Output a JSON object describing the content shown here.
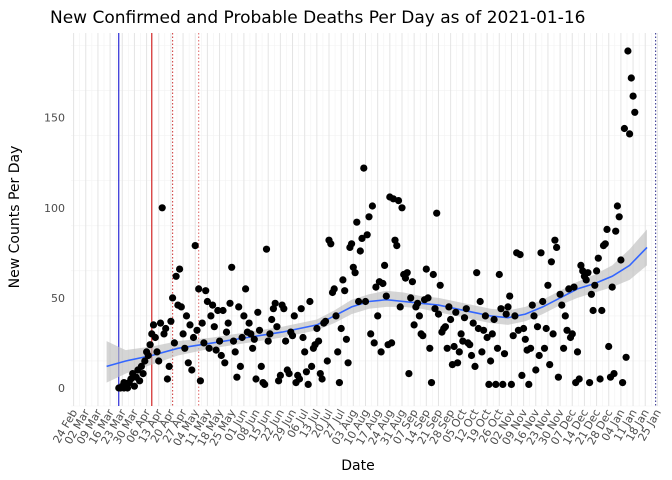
{
  "chart_data": {
    "type": "scatter",
    "title": "New Confirmed and Probable Deaths Per Day as of 2021-01-16",
    "xlabel": "Date",
    "ylabel": "New Counts Per Day",
    "x_domain_days": [
      -1.5,
      337.5
    ],
    "ylim": [
      -10,
      197
    ],
    "y_ticks": [
      0,
      50,
      100,
      150
    ],
    "x_tick_labels": [
      "24 Feb",
      "02 Mar",
      "09 Mar",
      "16 Mar",
      "23 Mar",
      "30 Mar",
      "06 Apr",
      "13 Apr",
      "20 Apr",
      "27 Apr",
      "04 May",
      "11 May",
      "18 May",
      "25 May",
      "01 Jun",
      "08 Jun",
      "15 Jun",
      "22 Jun",
      "29 Jun",
      "06 Jul",
      "13 Jul",
      "20 Jul",
      "27 Jul",
      "03 Aug",
      "10 Aug",
      "17 Aug",
      "24 Aug",
      "31 Aug",
      "07 Sep",
      "14 Sep",
      "21 Sep",
      "28 Sep",
      "05 Oct",
      "12 Oct",
      "19 Oct",
      "26 Oct",
      "02 Nov",
      "09 Nov",
      "16 Nov",
      "23 Nov",
      "30 Nov",
      "07 Dec",
      "14 Dec",
      "21 Dec",
      "28 Dec",
      "04 Jan",
      "11 Jan",
      "18 Jan",
      "25 Jan"
    ],
    "x_tick_offset_days": 7,
    "vertical_lines": [
      {
        "day": 26,
        "color": "#0000cd",
        "style": "solid"
      },
      {
        "day": 45,
        "color": "#cc0000",
        "style": "solid"
      },
      {
        "day": 57,
        "color": "#cc3333",
        "style": "dotted"
      },
      {
        "day": 72,
        "color": "#e06666",
        "style": "dotted"
      },
      {
        "day": 335,
        "color": "#2a2a8a",
        "style": "dotted"
      }
    ],
    "smooth": {
      "color": "#3366ff",
      "band_color": "#bfbfbf",
      "x": [
        19,
        30,
        45,
        60,
        80,
        100,
        120,
        140,
        150,
        160,
        170,
        180,
        190,
        200,
        210,
        220,
        230,
        240,
        250,
        260,
        270,
        280,
        290,
        300,
        310,
        320,
        330
      ],
      "y": [
        12,
        15,
        18,
        22,
        25,
        28,
        31,
        35,
        40,
        45,
        48,
        49,
        48,
        47,
        46,
        44,
        42,
        40,
        39,
        41,
        45,
        50,
        55,
        58,
        62,
        68,
        78
      ],
      "lower": [
        3,
        8,
        13,
        18,
        22,
        25,
        28,
        32,
        36,
        41,
        44,
        45,
        45,
        44,
        42,
        40,
        38,
        36,
        35,
        37,
        41,
        46,
        50,
        53,
        56,
        60,
        68
      ],
      "upper": [
        26,
        21,
        23,
        26,
        28,
        31,
        34,
        38,
        43,
        49,
        52,
        54,
        53,
        51,
        50,
        48,
        46,
        44,
        43,
        45,
        49,
        54,
        59,
        63,
        68,
        77,
        88
      ]
    },
    "points": [
      [
        26,
        0
      ],
      [
        27,
        0
      ],
      [
        28,
        1
      ],
      [
        29,
        0
      ],
      [
        29,
        3
      ],
      [
        30,
        1
      ],
      [
        31,
        0
      ],
      [
        31,
        2
      ],
      [
        32,
        3
      ],
      [
        33,
        5
      ],
      [
        34,
        8
      ],
      [
        35,
        1
      ],
      [
        36,
        6
      ],
      [
        37,
        10
      ],
      [
        38,
        4
      ],
      [
        39,
        12
      ],
      [
        40,
        8
      ],
      [
        41,
        15
      ],
      [
        42,
        20
      ],
      [
        43,
        18
      ],
      [
        44,
        24
      ],
      [
        45,
        30
      ],
      [
        46,
        35
      ],
      [
        47,
        28
      ],
      [
        48,
        20
      ],
      [
        49,
        15
      ],
      [
        50,
        36
      ],
      [
        51,
        100
      ],
      [
        52,
        30
      ],
      [
        53,
        33
      ],
      [
        54,
        5
      ],
      [
        55,
        12
      ],
      [
        56,
        37
      ],
      [
        57,
        50
      ],
      [
        58,
        25
      ],
      [
        59,
        62
      ],
      [
        60,
        46
      ],
      [
        61,
        66
      ],
      [
        62,
        45
      ],
      [
        63,
        30
      ],
      [
        64,
        22
      ],
      [
        65,
        40
      ],
      [
        66,
        14
      ],
      [
        67,
        35
      ],
      [
        68,
        10
      ],
      [
        69,
        28
      ],
      [
        70,
        79
      ],
      [
        71,
        32
      ],
      [
        72,
        55
      ],
      [
        73,
        4
      ],
      [
        74,
        36
      ],
      [
        75,
        25
      ],
      [
        76,
        54
      ],
      [
        77,
        48
      ],
      [
        78,
        22
      ],
      [
        79,
        40
      ],
      [
        80,
        46
      ],
      [
        81,
        34
      ],
      [
        82,
        21
      ],
      [
        83,
        43
      ],
      [
        84,
        26
      ],
      [
        85,
        18
      ],
      [
        86,
        43
      ],
      [
        87,
        14
      ],
      [
        88,
        31
      ],
      [
        89,
        36
      ],
      [
        90,
        47
      ],
      [
        91,
        67
      ],
      [
        92,
        26
      ],
      [
        93,
        20
      ],
      [
        94,
        6
      ],
      [
        95,
        45
      ],
      [
        96,
        12
      ],
      [
        97,
        28
      ],
      [
        98,
        40
      ],
      [
        99,
        55
      ],
      [
        100,
        31
      ],
      [
        101,
        36
      ],
      [
        102,
        30
      ],
      [
        103,
        22
      ],
      [
        104,
        27
      ],
      [
        105,
        5
      ],
      [
        106,
        42
      ],
      [
        107,
        32
      ],
      [
        108,
        12
      ],
      [
        109,
        3
      ],
      [
        110,
        2
      ],
      [
        111,
        77
      ],
      [
        112,
        26
      ],
      [
        113,
        30
      ],
      [
        114,
        38
      ],
      [
        115,
        44
      ],
      [
        116,
        47
      ],
      [
        117,
        34
      ],
      [
        118,
        4
      ],
      [
        119,
        7
      ],
      [
        120,
        46
      ],
      [
        121,
        44
      ],
      [
        122,
        26
      ],
      [
        123,
        10
      ],
      [
        124,
        8
      ],
      [
        125,
        31
      ],
      [
        126,
        29
      ],
      [
        127,
        40
      ],
      [
        128,
        3
      ],
      [
        129,
        7
      ],
      [
        130,
        5
      ],
      [
        131,
        44
      ],
      [
        132,
        28
      ],
      [
        133,
        20
      ],
      [
        134,
        9
      ],
      [
        135,
        2
      ],
      [
        136,
        48
      ],
      [
        137,
        12
      ],
      [
        138,
        22
      ],
      [
        139,
        24
      ],
      [
        140,
        33
      ],
      [
        141,
        26
      ],
      [
        142,
        8
      ],
      [
        143,
        5
      ],
      [
        144,
        36
      ],
      [
        145,
        37
      ],
      [
        146,
        15
      ],
      [
        147,
        82
      ],
      [
        148,
        80
      ],
      [
        149,
        53
      ],
      [
        150,
        55
      ],
      [
        151,
        40
      ],
      [
        152,
        20
      ],
      [
        153,
        3
      ],
      [
        154,
        33
      ],
      [
        155,
        60
      ],
      [
        156,
        54
      ],
      [
        157,
        27
      ],
      [
        158,
        14
      ],
      [
        159,
        78
      ],
      [
        160,
        80
      ],
      [
        161,
        67
      ],
      [
        162,
        64
      ],
      [
        163,
        92
      ],
      [
        164,
        48
      ],
      [
        165,
        76
      ],
      [
        166,
        83
      ],
      [
        167,
        122
      ],
      [
        168,
        48
      ],
      [
        169,
        85
      ],
      [
        170,
        95
      ],
      [
        171,
        30
      ],
      [
        172,
        101
      ],
      [
        173,
        25
      ],
      [
        174,
        56
      ],
      [
        175,
        40
      ],
      [
        176,
        59
      ],
      [
        177,
        20
      ],
      [
        178,
        58
      ],
      [
        179,
        68
      ],
      [
        180,
        51
      ],
      [
        181,
        24
      ],
      [
        182,
        106
      ],
      [
        183,
        25
      ],
      [
        184,
        105
      ],
      [
        185,
        82
      ],
      [
        186,
        79
      ],
      [
        187,
        104
      ],
      [
        188,
        45
      ],
      [
        189,
        100
      ],
      [
        190,
        63
      ],
      [
        191,
        61
      ],
      [
        192,
        64
      ],
      [
        193,
        8
      ],
      [
        194,
        50
      ],
      [
        195,
        59
      ],
      [
        196,
        35
      ],
      [
        197,
        45
      ],
      [
        198,
        47
      ],
      [
        199,
        40
      ],
      [
        200,
        30
      ],
      [
        201,
        29
      ],
      [
        202,
        49
      ],
      [
        203,
        66
      ],
      [
        204,
        50
      ],
      [
        205,
        22
      ],
      [
        206,
        3
      ],
      [
        207,
        63
      ],
      [
        208,
        44
      ],
      [
        209,
        97
      ],
      [
        210,
        41
      ],
      [
        211,
        57
      ],
      [
        212,
        31
      ],
      [
        213,
        33
      ],
      [
        214,
        34
      ],
      [
        215,
        22
      ],
      [
        216,
        45
      ],
      [
        217,
        38
      ],
      [
        218,
        13
      ],
      [
        219,
        23
      ],
      [
        220,
        42
      ],
      [
        221,
        14
      ],
      [
        222,
        20
      ],
      [
        223,
        30
      ],
      [
        224,
        26
      ],
      [
        225,
        39
      ],
      [
        226,
        44
      ],
      [
        227,
        25
      ],
      [
        228,
        24
      ],
      [
        229,
        18
      ],
      [
        230,
        36
      ],
      [
        231,
        12
      ],
      [
        232,
        64
      ],
      [
        233,
        33
      ],
      [
        234,
        48
      ],
      [
        235,
        20
      ],
      [
        236,
        32
      ],
      [
        237,
        40
      ],
      [
        238,
        28
      ],
      [
        239,
        2
      ],
      [
        240,
        15
      ],
      [
        241,
        30
      ],
      [
        242,
        38
      ],
      [
        243,
        2
      ],
      [
        244,
        22
      ],
      [
        245,
        63
      ],
      [
        246,
        44
      ],
      [
        247,
        2
      ],
      [
        248,
        19
      ],
      [
        249,
        41
      ],
      [
        250,
        45
      ],
      [
        251,
        51
      ],
      [
        252,
        2
      ],
      [
        253,
        29
      ],
      [
        254,
        40
      ],
      [
        255,
        75
      ],
      [
        256,
        32
      ],
      [
        257,
        74
      ],
      [
        258,
        7
      ],
      [
        259,
        33
      ],
      [
        260,
        27
      ],
      [
        261,
        21
      ],
      [
        262,
        2
      ],
      [
        263,
        22
      ],
      [
        264,
        46
      ],
      [
        265,
        40
      ],
      [
        266,
        10
      ],
      [
        267,
        34
      ],
      [
        268,
        18
      ],
      [
        269,
        75
      ],
      [
        270,
        48
      ],
      [
        271,
        22
      ],
      [
        272,
        33
      ],
      [
        273,
        57
      ],
      [
        274,
        13
      ],
      [
        275,
        70
      ],
      [
        276,
        30
      ],
      [
        277,
        82
      ],
      [
        278,
        78
      ],
      [
        279,
        6
      ],
      [
        280,
        52
      ],
      [
        281,
        46
      ],
      [
        282,
        22
      ],
      [
        283,
        40
      ],
      [
        284,
        32
      ],
      [
        285,
        55
      ],
      [
        286,
        28
      ],
      [
        287,
        30
      ],
      [
        288,
        56
      ],
      [
        289,
        3
      ],
      [
        290,
        20
      ],
      [
        291,
        5
      ],
      [
        292,
        68
      ],
      [
        293,
        65
      ],
      [
        294,
        62
      ],
      [
        295,
        60
      ],
      [
        296,
        64
      ],
      [
        297,
        3
      ],
      [
        298,
        52
      ],
      [
        299,
        43
      ],
      [
        300,
        57
      ],
      [
        301,
        65
      ],
      [
        302,
        72
      ],
      [
        303,
        5
      ],
      [
        304,
        43
      ],
      [
        305,
        79
      ],
      [
        306,
        80
      ],
      [
        307,
        88
      ],
      [
        308,
        23
      ],
      [
        309,
        6
      ],
      [
        310,
        56
      ],
      [
        311,
        8
      ],
      [
        312,
        87
      ],
      [
        313,
        101
      ],
      [
        314,
        95
      ],
      [
        315,
        71
      ],
      [
        316,
        3
      ],
      [
        317,
        144
      ],
      [
        318,
        17
      ],
      [
        319,
        187
      ],
      [
        320,
        141
      ],
      [
        321,
        172
      ],
      [
        322,
        162
      ],
      [
        323,
        153
      ]
    ]
  }
}
